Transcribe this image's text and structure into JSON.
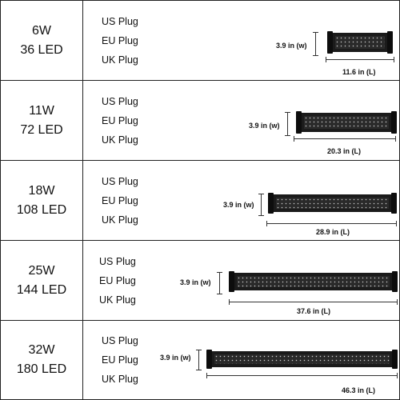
{
  "rows": [
    {
      "watt": "6W",
      "led": "36 LED",
      "plugs": [
        "US Plug",
        "EU Plug",
        "UK Plug"
      ],
      "width_label": "3.9 in (w)",
      "length_label": "11.6 in (L)"
    },
    {
      "watt": "11W",
      "led": "72 LED",
      "plugs": [
        "US Plug",
        "EU Plug",
        "UK Plug"
      ],
      "width_label": "3.9 in (w)",
      "length_label": "20.3 in (L)"
    },
    {
      "watt": "18W",
      "led": "108 LED",
      "plugs": [
        "US Plug",
        "EU Plug",
        "UK Plug"
      ],
      "width_label": "3.9 in (w)",
      "length_label": "28.9 in (L)"
    },
    {
      "watt": "25W",
      "led": "144 LED",
      "plugs": [
        "US Plug",
        "EU Plug",
        "UK Plug"
      ],
      "width_label": "3.9 in (w)",
      "length_label": "37.6 in (L)"
    },
    {
      "watt": "32W",
      "led": "180 LED",
      "plugs": [
        "US Plug",
        "EU Plug",
        "UK Plug"
      ],
      "width_label": "3.9 in (w)",
      "length_label": "46.3 in (L)"
    }
  ],
  "colors": {
    "border": "#222222",
    "light_body": "#1b1b1b"
  }
}
